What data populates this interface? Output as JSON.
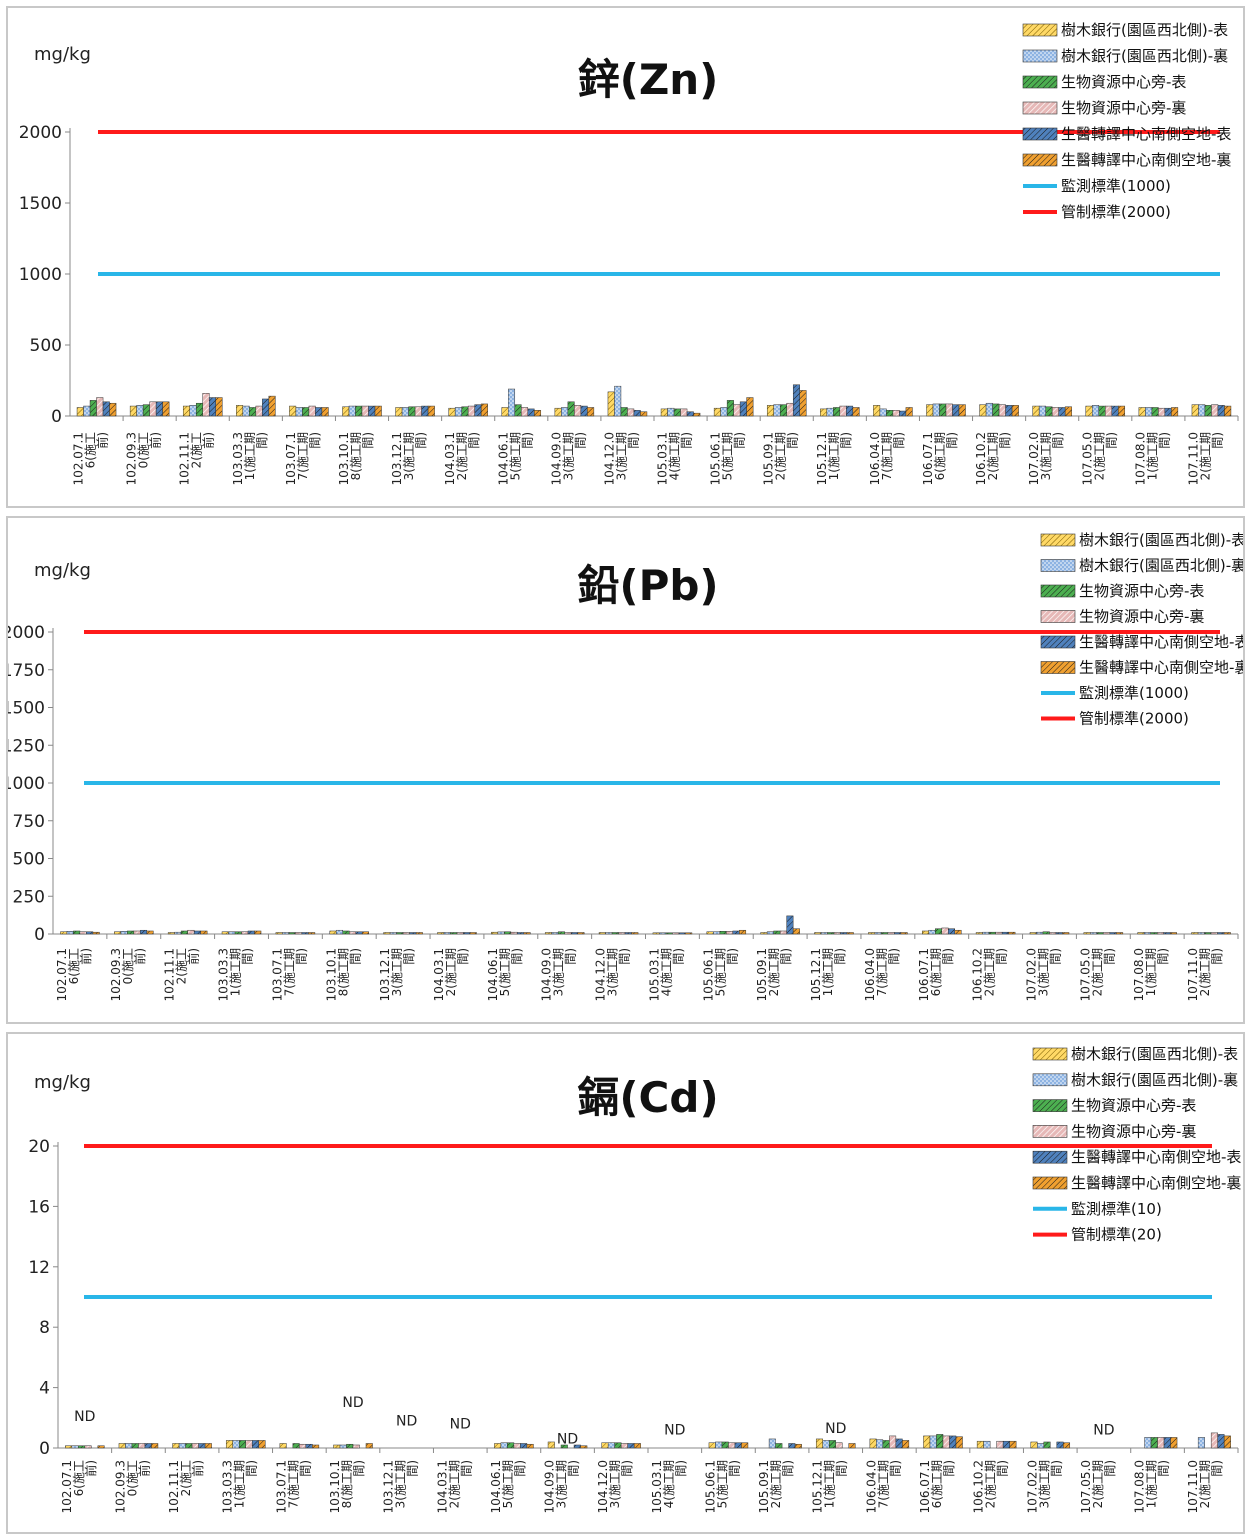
{
  "legend_series": [
    "樹木銀行(園區西北側)-表",
    "樹木銀行(園區西北側)-裏",
    "生物資源中心旁-表",
    "生物資源中心旁-裏",
    "生醫轉譯中心南側空地-表",
    "生醫轉譯中心南側空地-裏"
  ],
  "series_colors": [
    "#ffd966",
    "#8db3e2",
    "#4caf50",
    "#e6b8b7",
    "#4f81bd",
    "#f0a030"
  ],
  "series_patterns": [
    "diag-dark",
    "dots",
    "diag-green",
    "diag-pink",
    "cross-blue",
    "diag-orange"
  ],
  "line_colors": {
    "monitor": "#29b6e8",
    "control": "#ff1a1a"
  },
  "categories": [
    [
      "102.07.1",
      "6(施工",
      "前)"
    ],
    [
      "102.09.3",
      "0(施工",
      "前)"
    ],
    [
      "102.11.1",
      "2(施工",
      "前)"
    ],
    [
      "103.03.3",
      "1(施工期",
      "間)"
    ],
    [
      "103.07.1",
      "7(施工期",
      "間)"
    ],
    [
      "103.10.1",
      "8(施工期",
      "間)"
    ],
    [
      "103.12.1",
      "3(施工期",
      "間)"
    ],
    [
      "104.03.1",
      "2(施工期",
      "間)"
    ],
    [
      "104.06.1",
      "5(施工期",
      "間)"
    ],
    [
      "104.09.0",
      "3(施工期",
      "間)"
    ],
    [
      "104.12.0",
      "3(施工期",
      "間)"
    ],
    [
      "105.03.1",
      "4(施工期",
      "間)"
    ],
    [
      "105.06.1",
      "5(施工期",
      "間)"
    ],
    [
      "105.09.1",
      "2(施工期",
      "間)"
    ],
    [
      "105.12.1",
      "1(施工期",
      "間)"
    ],
    [
      "106.04.0",
      "7(施工期",
      "間)"
    ],
    [
      "106.07.1",
      "6(施工期",
      "間)"
    ],
    [
      "106.10.2",
      "2(施工期",
      "間)"
    ],
    [
      "107.02.0",
      "3(施工期",
      "間)"
    ],
    [
      "107.05.0",
      "2(施工期",
      "間)"
    ],
    [
      "107.08.0",
      "1(施工期",
      "間)"
    ],
    [
      "107.11.0",
      "2(施工期",
      "間)"
    ]
  ],
  "chart_data": [
    {
      "type": "bar",
      "title": "鋅(Zn)",
      "ylabel": "mg/kg",
      "ylim": [
        0,
        2000
      ],
      "yticks": [
        "0",
        "500",
        "1000",
        "1500",
        "2000"
      ],
      "legend": [
        "樹木銀行(園區西北側)-表",
        "樹木銀行(園區西北側)-裏",
        "生物資源中心旁-表",
        "生物資源中心旁-裏",
        "生醫轉譯中心南側空地-表",
        "生醫轉譯中心南側空地-裏",
        "監測標準(1000)",
        "管制標準(2000)"
      ],
      "lines": [
        {
          "name": "監測標準(1000)",
          "value": 1000
        },
        {
          "name": "管制標準(2000)",
          "value": 2000
        }
      ],
      "series": [
        {
          "name": "樹木銀行(園區西北側)-表",
          "values": [
            60,
            70,
            70,
            75,
            70,
            65,
            60,
            55,
            60,
            55,
            170,
            50,
            55,
            75,
            50,
            75,
            80,
            80,
            70,
            70,
            60,
            80
          ]
        },
        {
          "name": "樹木銀行(園區西北側)-裏",
          "values": [
            70,
            75,
            75,
            70,
            60,
            70,
            60,
            60,
            190,
            60,
            210,
            55,
            60,
            80,
            55,
            50,
            85,
            90,
            70,
            75,
            60,
            80
          ]
        },
        {
          "name": "生物資源中心旁-表",
          "values": [
            110,
            80,
            90,
            60,
            60,
            70,
            65,
            65,
            80,
            100,
            60,
            50,
            110,
            80,
            60,
            40,
            85,
            85,
            65,
            70,
            60,
            75
          ]
        },
        {
          "name": "生物資源中心旁-裏",
          "values": [
            130,
            100,
            160,
            70,
            70,
            70,
            65,
            70,
            60,
            75,
            50,
            50,
            80,
            90,
            70,
            40,
            85,
            80,
            60,
            70,
            55,
            80
          ]
        },
        {
          "name": "生醫轉譯中心南側空地-表",
          "values": [
            100,
            100,
            130,
            120,
            60,
            70,
            70,
            80,
            50,
            70,
            40,
            30,
            100,
            220,
            70,
            35,
            80,
            75,
            60,
            70,
            55,
            75
          ]
        },
        {
          "name": "生醫轉譯中心南側空地-裏",
          "values": [
            90,
            100,
            130,
            140,
            60,
            70,
            70,
            85,
            40,
            60,
            30,
            20,
            130,
            180,
            60,
            60,
            80,
            75,
            65,
            70,
            60,
            70
          ]
        }
      ],
      "nd_labels": []
    },
    {
      "type": "bar",
      "title": "鉛(Pb)",
      "ylabel": "mg/kg",
      "ylim": [
        0,
        2000
      ],
      "yticks": [
        "0",
        "250",
        "500",
        "750",
        "1000",
        "1250",
        "1500",
        "1750",
        "2000"
      ],
      "legend": [
        "樹木銀行(園區西北側)-表",
        "樹木銀行(園區西北側)-裏",
        "生物資源中心旁-表",
        "生物資源中心旁-裏",
        "生醫轉譯中心南側空地-表",
        "生醫轉譯中心南側空地-裏",
        "監測標準(1000)",
        "管制標準(2000)"
      ],
      "lines": [
        {
          "name": "監測標準(1000)",
          "value": 1000
        },
        {
          "name": "管制標準(2000)",
          "value": 2000
        }
      ],
      "series": [
        {
          "name": "樹木銀行(園區西北側)-表",
          "values": [
            15,
            15,
            10,
            15,
            10,
            20,
            10,
            10,
            12,
            10,
            10,
            8,
            15,
            10,
            10,
            10,
            20,
            10,
            10,
            10,
            10,
            10
          ]
        },
        {
          "name": "樹木銀行(園區西北側)-裏",
          "values": [
            18,
            18,
            12,
            15,
            10,
            25,
            10,
            10,
            14,
            10,
            10,
            8,
            15,
            15,
            10,
            10,
            25,
            12,
            12,
            10,
            10,
            10
          ]
        },
        {
          "name": "生物資源中心旁-表",
          "values": [
            20,
            20,
            20,
            15,
            10,
            20,
            10,
            10,
            15,
            15,
            10,
            8,
            18,
            20,
            10,
            10,
            35,
            12,
            15,
            10,
            10,
            10
          ]
        },
        {
          "name": "生物資源中心旁-裏",
          "values": [
            15,
            20,
            25,
            15,
            10,
            15,
            10,
            10,
            12,
            10,
            10,
            8,
            18,
            20,
            10,
            10,
            40,
            12,
            10,
            10,
            10,
            10
          ]
        },
        {
          "name": "生醫轉譯中心南側空地-表",
          "values": [
            15,
            25,
            20,
            20,
            10,
            15,
            10,
            10,
            10,
            10,
            10,
            8,
            20,
            120,
            10,
            10,
            35,
            12,
            10,
            10,
            10,
            10
          ]
        },
        {
          "name": "生醫轉譯中心南側空地-裏",
          "values": [
            12,
            20,
            20,
            20,
            10,
            15,
            10,
            10,
            10,
            10,
            10,
            8,
            25,
            35,
            10,
            10,
            25,
            12,
            10,
            10,
            10,
            10
          ]
        }
      ],
      "nd_labels": []
    },
    {
      "type": "bar",
      "title": "鎘(Cd)",
      "ylabel": "mg/kg",
      "ylim": [
        0,
        20
      ],
      "yticks": [
        "0",
        "4",
        "8",
        "12",
        "16",
        "20"
      ],
      "legend": [
        "樹木銀行(園區西北側)-表",
        "樹木銀行(園區西北側)-裏",
        "生物資源中心旁-表",
        "生物資源中心旁-裏",
        "生醫轉譯中心南側空地-表",
        "生醫轉譯中心南側空地-裏",
        "監測標準(10)",
        "管制標準(20)"
      ],
      "lines": [
        {
          "name": "監測標準(10)",
          "value": 10
        },
        {
          "name": "管制標準(20)",
          "value": 20
        }
      ],
      "series": [
        {
          "name": "樹木銀行(園區西北側)-表",
          "values": [
            0.15,
            0.3,
            0.3,
            0.5,
            0.3,
            0.2,
            0,
            0,
            0.3,
            0.4,
            0.35,
            0,
            0.35,
            0,
            0.6,
            0.6,
            0.8,
            0.45,
            0.4,
            0,
            0,
            0
          ]
        },
        {
          "name": "樹木銀行(園區西北側)-裏",
          "values": [
            0.15,
            0.3,
            0.3,
            0.5,
            0,
            0.2,
            0,
            0,
            0.35,
            0,
            0.35,
            0,
            0.4,
            0.6,
            0.5,
            0.55,
            0.8,
            0.45,
            0.3,
            0,
            0.7,
            0.7
          ]
        },
        {
          "name": "生物資源中心旁-表",
          "values": [
            0.15,
            0.3,
            0.3,
            0.5,
            0.3,
            0.25,
            0,
            0,
            0.35,
            0.2,
            0.35,
            0,
            0.4,
            0.3,
            0.5,
            0.5,
            0.9,
            0,
            0.4,
            0,
            0.7,
            0
          ]
        },
        {
          "name": "生物資源中心旁-裏",
          "values": [
            0.15,
            0.3,
            0.3,
            0.5,
            0.25,
            0.2,
            0,
            0,
            0.3,
            0,
            0.3,
            0,
            0.35,
            0,
            0.35,
            0.8,
            0.8,
            0.45,
            0,
            0,
            0.7,
            1.0
          ]
        },
        {
          "name": "生醫轉譯中心南側空地-表",
          "values": [
            0,
            0.3,
            0.3,
            0.5,
            0.25,
            0,
            0,
            0,
            0.3,
            0.2,
            0.3,
            0,
            0.35,
            0.3,
            0,
            0.6,
            0.8,
            0.45,
            0.4,
            0,
            0.7,
            0.9
          ]
        },
        {
          "name": "生醫轉譯中心南側空地-裏",
          "values": [
            0.15,
            0.3,
            0.3,
            0.5,
            0.2,
            0.3,
            0,
            0,
            0.25,
            0.15,
            0.3,
            0,
            0.35,
            0.25,
            0.3,
            0.5,
            0.75,
            0.45,
            0.35,
            0,
            0.7,
            0.8
          ]
        }
      ],
      "nd_labels": [
        {
          "category": 0,
          "level": 1.8,
          "text": "ND"
        },
        {
          "category": 5,
          "level": 2.7,
          "text": "ND"
        },
        {
          "category": 6,
          "level": 1.5,
          "text": "ND"
        },
        {
          "category": 7,
          "level": 1.3,
          "text": "ND"
        },
        {
          "category": 9,
          "level": 0.3,
          "text": "ND"
        },
        {
          "category": 11,
          "level": 0.9,
          "text": "ND"
        },
        {
          "category": 14,
          "level": 1.0,
          "text": "ND"
        },
        {
          "category": 19,
          "level": 0.9,
          "text": "ND"
        }
      ]
    }
  ]
}
